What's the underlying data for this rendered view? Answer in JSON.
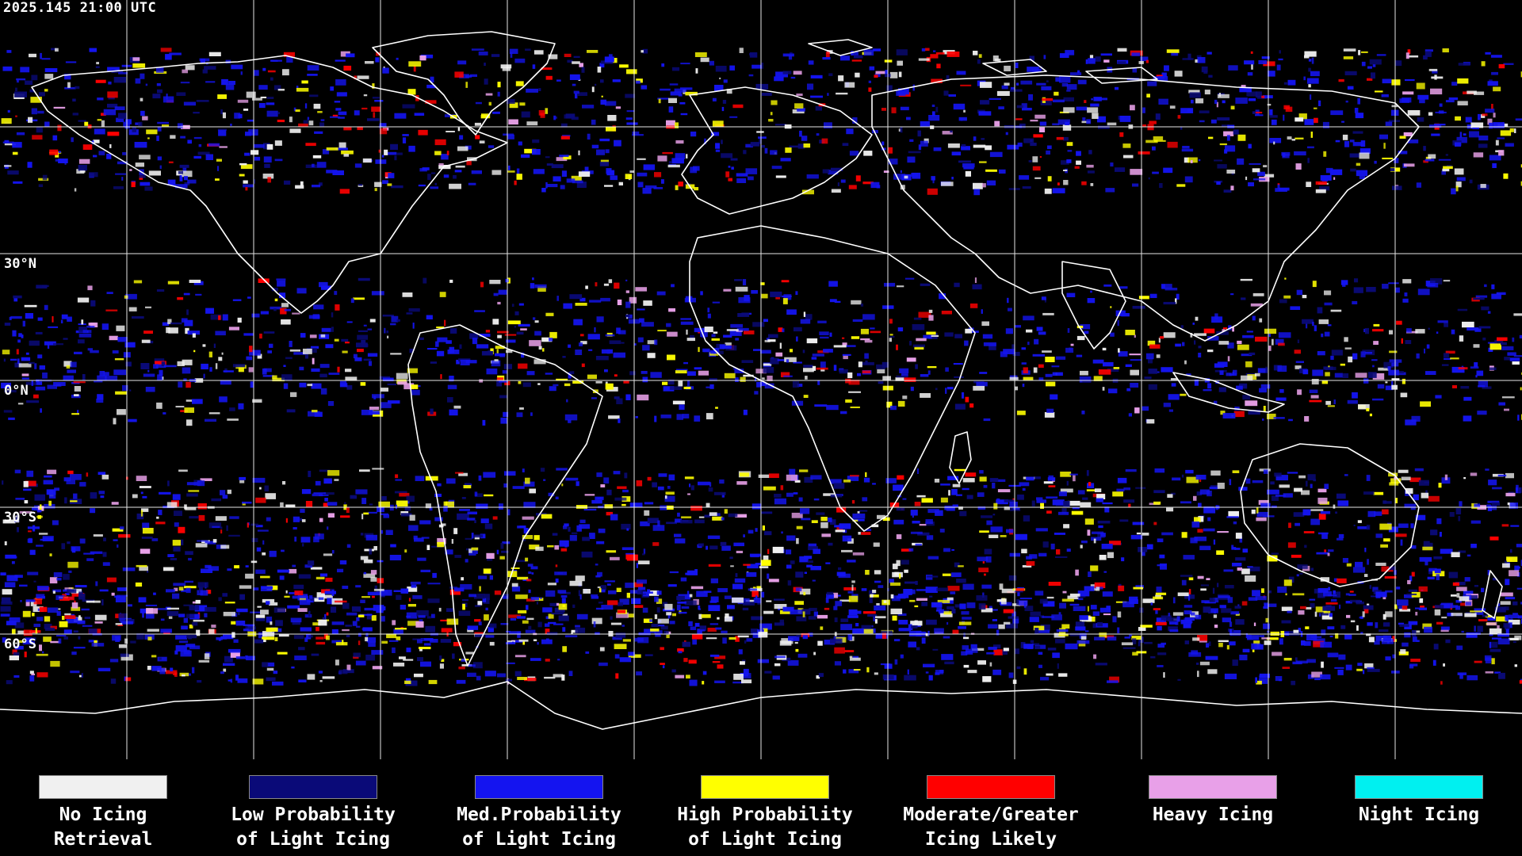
{
  "header": {
    "timestamp": "2025.145 21:00 UTC"
  },
  "map": {
    "latitude_labels": [
      {
        "text": "30°N",
        "lat": 30
      },
      {
        "text": "0°N",
        "lat": 0
      },
      {
        "text": "30°S",
        "lat": -30
      },
      {
        "text": "60°S",
        "lat": -60
      }
    ],
    "grid_color": "#ffffff",
    "coastline_color": "#ffffff",
    "background_color": "#000000"
  },
  "legend": {
    "items": [
      {
        "line1": "No Icing",
        "line2": "Retrieval",
        "color": "#f0f0f0"
      },
      {
        "line1": "Low Probability",
        "line2": "of Light Icing",
        "color": "#0a0a78"
      },
      {
        "line1": "Med.Probability",
        "line2": "of Light Icing",
        "color": "#1414f0"
      },
      {
        "line1": "High Probability",
        "line2": "of Light Icing",
        "color": "#ffff00"
      },
      {
        "line1": "Moderate/Greater",
        "line2": "Icing Likely",
        "color": "#ff0000"
      },
      {
        "line1": "Heavy Icing",
        "line2": "",
        "color": "#e8a0e8"
      },
      {
        "line1": "Night Icing",
        "line2": "",
        "color": "#00f0f0"
      }
    ]
  }
}
